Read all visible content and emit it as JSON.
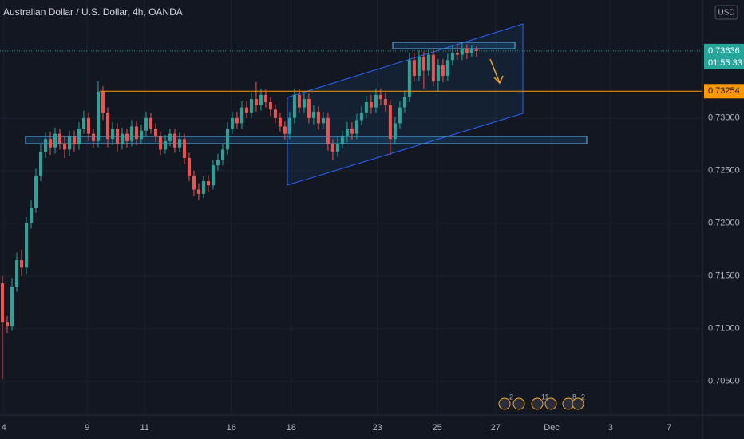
{
  "chart_data": {
    "type": "candlestick",
    "title": "Australian Dollar / U.S. Dollar, 4h, OANDA",
    "currency": "USD",
    "up_color": "#26a69a",
    "down_color": "#ef5350",
    "open": [
      0.7143,
      0.7106,
      0.7102,
      0.714,
      0.7165,
      0.7158,
      0.72,
      0.7215,
      0.7245,
      0.7268,
      0.728,
      0.7272,
      0.7285,
      0.7276,
      0.727,
      0.7282,
      0.7275,
      0.729,
      0.73,
      0.7285,
      0.7278,
      0.7325,
      0.7305,
      0.728,
      0.729,
      0.7275,
      0.7285,
      0.7278,
      0.7292,
      0.728,
      0.7288,
      0.73,
      0.729,
      0.7282,
      0.727,
      0.7278,
      0.7285,
      0.7272,
      0.728,
      0.7262,
      0.7245,
      0.7232,
      0.7228,
      0.724,
      0.7236,
      0.7255,
      0.726,
      0.727,
      0.729,
      0.73,
      0.7295,
      0.731,
      0.7305,
      0.7318,
      0.7312,
      0.7322,
      0.7315,
      0.7308,
      0.73,
      0.7292,
      0.7285,
      0.73,
      0.7322,
      0.731,
      0.7318,
      0.73,
      0.7306,
      0.7295,
      0.73,
      0.7275,
      0.7268,
      0.7276,
      0.7282,
      0.729,
      0.7285,
      0.7298,
      0.7305,
      0.7315,
      0.731,
      0.7322,
      0.7318,
      0.7312,
      0.728,
      0.7295,
      0.731,
      0.732,
      0.7355,
      0.734,
      0.7358,
      0.7345,
      0.736,
      0.7335,
      0.735,
      0.734,
      0.7355,
      0.7362,
      0.736,
      0.7366,
      0.7362,
      0.7365
    ],
    "high": [
      0.715,
      0.7112,
      0.7148,
      0.7172,
      0.7175,
      0.7206,
      0.7222,
      0.7252,
      0.7275,
      0.7286,
      0.7287,
      0.7291,
      0.729,
      0.7282,
      0.7288,
      0.7288,
      0.7296,
      0.7307,
      0.7305,
      0.729,
      0.7335,
      0.733,
      0.731,
      0.7296,
      0.7295,
      0.7291,
      0.729,
      0.7298,
      0.7297,
      0.7294,
      0.7306,
      0.7305,
      0.7295,
      0.7287,
      0.7284,
      0.729,
      0.729,
      0.7286,
      0.7285,
      0.7267,
      0.725,
      0.7238,
      0.7245,
      0.7246,
      0.726,
      0.7266,
      0.7276,
      0.7296,
      0.7306,
      0.7306,
      0.7316,
      0.7316,
      0.7324,
      0.7334,
      0.7328,
      0.7327,
      0.732,
      0.7313,
      0.7305,
      0.7297,
      0.7306,
      0.7328,
      0.7327,
      0.7324,
      0.7323,
      0.7312,
      0.7311,
      0.7306,
      0.7305,
      0.728,
      0.7282,
      0.7288,
      0.7296,
      0.7296,
      0.7304,
      0.7311,
      0.7321,
      0.7322,
      0.7328,
      0.7328,
      0.7324,
      0.7317,
      0.7301,
      0.7316,
      0.7326,
      0.7362,
      0.7362,
      0.7364,
      0.7363,
      0.7365,
      0.7365,
      0.7356,
      0.7356,
      0.7361,
      0.7368,
      0.737,
      0.7372,
      0.737,
      0.7369,
      0.7368
    ],
    "low": [
      0.7052,
      0.7096,
      0.7098,
      0.7135,
      0.715,
      0.7152,
      0.7195,
      0.721,
      0.724,
      0.7262,
      0.7265,
      0.7266,
      0.727,
      0.7262,
      0.7264,
      0.7268,
      0.727,
      0.7285,
      0.7278,
      0.7272,
      0.7272,
      0.7298,
      0.7272,
      0.7274,
      0.7268,
      0.727,
      0.7272,
      0.7273,
      0.7274,
      0.7275,
      0.7283,
      0.7285,
      0.7277,
      0.7265,
      0.7266,
      0.7273,
      0.7267,
      0.7268,
      0.7256,
      0.724,
      0.7226,
      0.7222,
      0.7224,
      0.723,
      0.7232,
      0.725,
      0.7255,
      0.7265,
      0.7285,
      0.729,
      0.729,
      0.73,
      0.73,
      0.7306,
      0.7307,
      0.731,
      0.7302,
      0.7295,
      0.7287,
      0.7279,
      0.728,
      0.7295,
      0.7305,
      0.7305,
      0.7295,
      0.7294,
      0.7289,
      0.729,
      0.7269,
      0.726,
      0.7263,
      0.7271,
      0.7277,
      0.7279,
      0.728,
      0.7293,
      0.73,
      0.7304,
      0.7305,
      0.7312,
      0.7306,
      0.7265,
      0.7275,
      0.729,
      0.7305,
      0.7315,
      0.7334,
      0.7335,
      0.7328,
      0.734,
      0.733,
      0.7325,
      0.7334,
      0.7335,
      0.735,
      0.7355,
      0.7355,
      0.7356,
      0.7358,
      0.7358
    ],
    "close": [
      0.7106,
      0.7102,
      0.714,
      0.7165,
      0.7158,
      0.72,
      0.7215,
      0.7245,
      0.7268,
      0.728,
      0.7272,
      0.7285,
      0.7276,
      0.727,
      0.7282,
      0.7275,
      0.729,
      0.73,
      0.7285,
      0.7278,
      0.7325,
      0.7305,
      0.728,
      0.729,
      0.7275,
      0.7285,
      0.7278,
      0.7292,
      0.728,
      0.7288,
      0.73,
      0.729,
      0.7282,
      0.727,
      0.7278,
      0.7285,
      0.7272,
      0.728,
      0.7262,
      0.7245,
      0.7232,
      0.7228,
      0.724,
      0.7236,
      0.7255,
      0.726,
      0.727,
      0.729,
      0.73,
      0.7295,
      0.731,
      0.7305,
      0.7318,
      0.7312,
      0.7322,
      0.7315,
      0.7308,
      0.73,
      0.7292,
      0.7285,
      0.73,
      0.7322,
      0.731,
      0.7318,
      0.73,
      0.7306,
      0.7295,
      0.73,
      0.7275,
      0.7268,
      0.7276,
      0.7282,
      0.729,
      0.7285,
      0.7298,
      0.7305,
      0.7315,
      0.731,
      0.7322,
      0.7318,
      0.7312,
      0.728,
      0.7295,
      0.731,
      0.732,
      0.7355,
      0.734,
      0.7358,
      0.7345,
      0.736,
      0.7335,
      0.735,
      0.734,
      0.7355,
      0.7362,
      0.736,
      0.7366,
      0.7362,
      0.7365,
      0.73636
    ],
    "countdown": "01:55:33",
    "level": {
      "value": 0.73254,
      "color": "#ff9800"
    },
    "xlim": [
      -0.5,
      146.2
    ],
    "xticks": [
      {
        "value": 0.3,
        "label": "4"
      },
      {
        "value": 17.7,
        "label": "9"
      },
      {
        "value": 29.7,
        "label": "11"
      },
      {
        "value": 47.8,
        "label": "16"
      },
      {
        "value": 60.3,
        "label": "18"
      },
      {
        "value": 78.3,
        "label": "23"
      },
      {
        "value": 90.8,
        "label": "25"
      },
      {
        "value": 103,
        "label": "27"
      },
      {
        "value": 114.7,
        "label": "Dec"
      },
      {
        "value": 127,
        "label": "3"
      },
      {
        "value": 139.2,
        "label": "7"
      }
    ],
    "ylim": [
      0.7018,
      0.7412
    ],
    "yticks": [
      {
        "value": 0.705,
        "label": "0.70500"
      },
      {
        "value": 0.71,
        "label": "0.71000"
      },
      {
        "value": 0.715,
        "label": "0.71500"
      },
      {
        "value": 0.72,
        "label": "0.72000"
      },
      {
        "value": 0.725,
        "label": "0.72500"
      },
      {
        "value": 0.73,
        "label": "0.73000"
      }
    ],
    "grid": true,
    "events": [
      "2",
      "11",
      "8",
      "2"
    ]
  }
}
